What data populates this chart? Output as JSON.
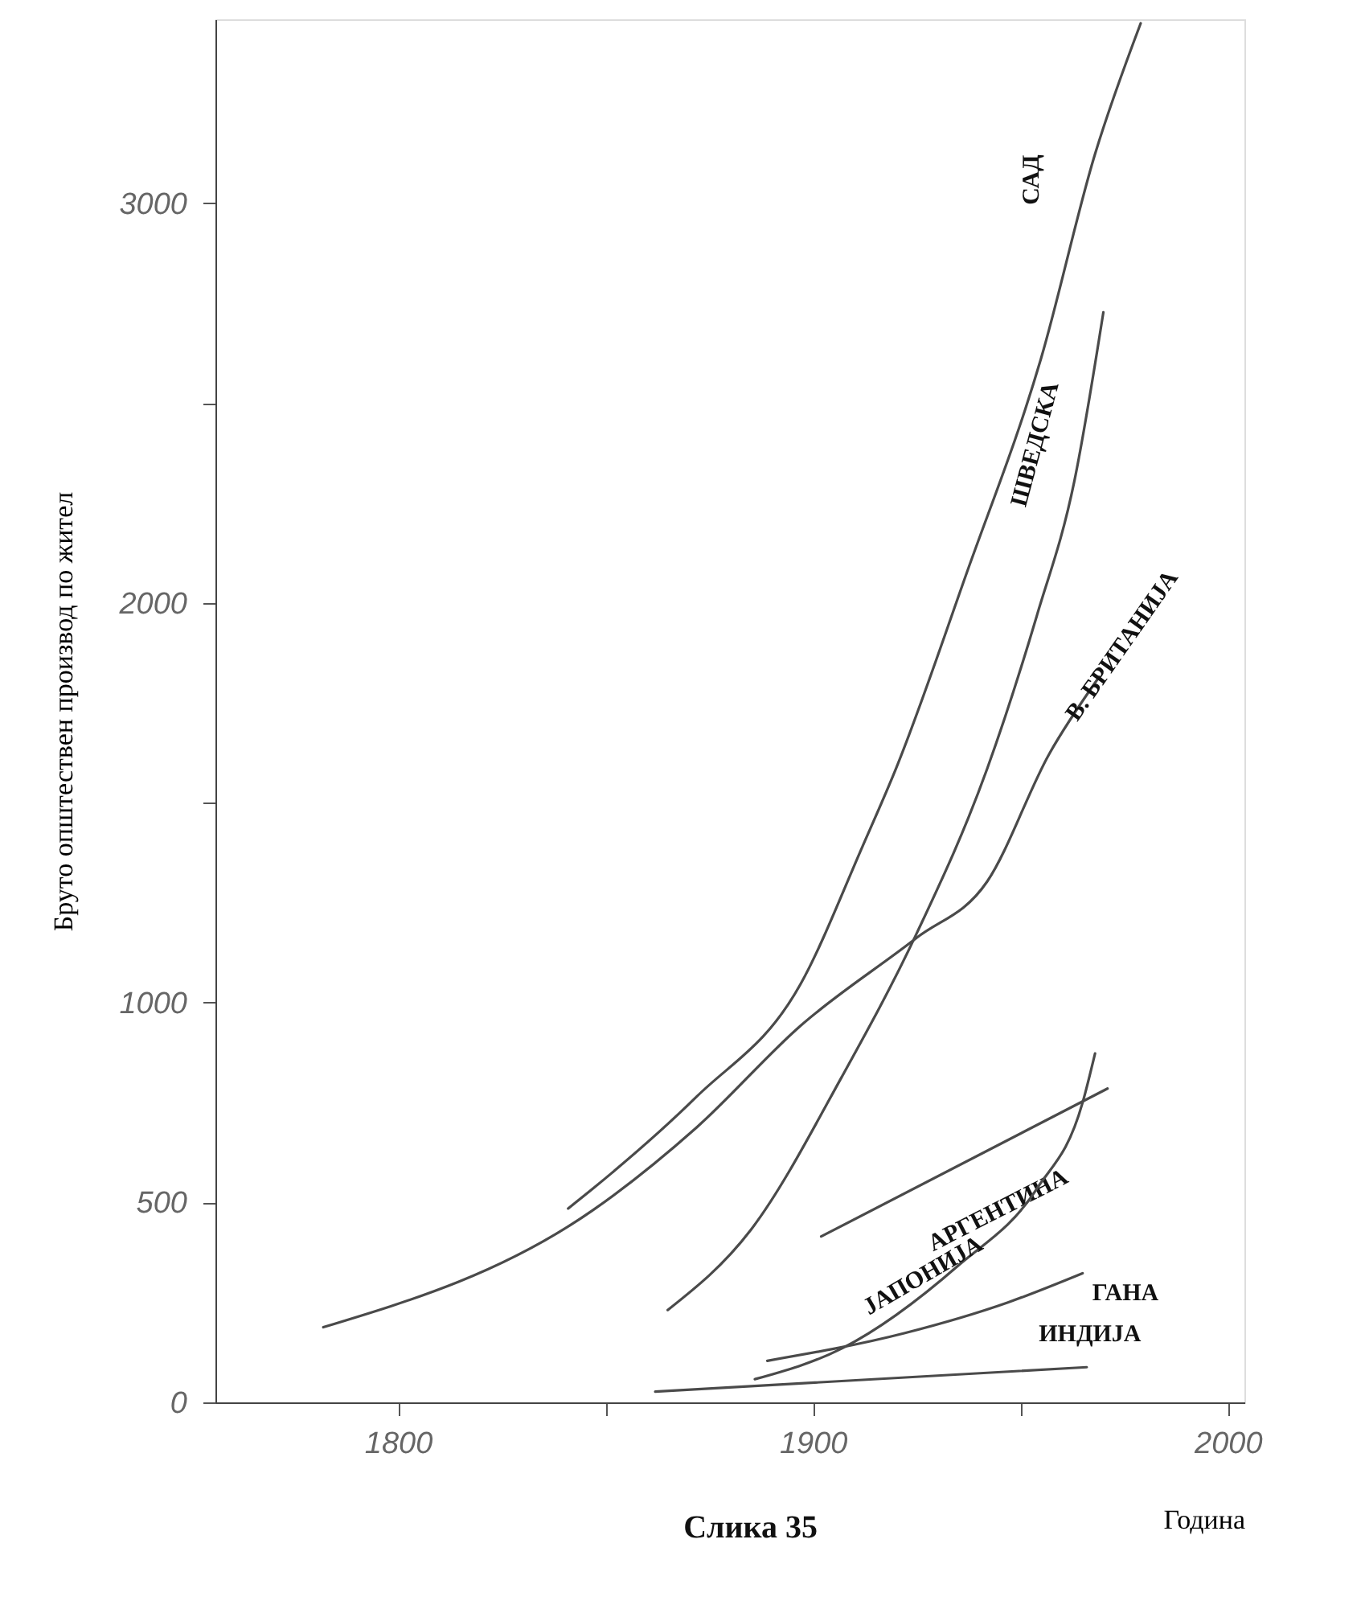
{
  "chart_data": {
    "type": "line",
    "xlabel": "Година",
    "ylabel": "Бруто општествен производ по жител",
    "annotations": [
      "Слика 35"
    ],
    "xlim": [
      1756,
      2004
    ],
    "xticks": [
      1800,
      {
        "value": 1850,
        "label": null
      },
      1900,
      {
        "value": 1950,
        "label": null
      },
      2000
    ],
    "ylim": [
      0,
      3460
    ],
    "yticks": [
      0,
      500,
      1000,
      {
        "value": 1500,
        "label": null
      },
      2000,
      {
        "value": 2500,
        "label": null
      },
      3000
    ],
    "grid": false,
    "series": [
      {
        "name": "САД",
        "color": "#4a4a4a",
        "x": [
          1841,
          1847,
          1872,
          1897,
          1912,
          1920,
          1937,
          1955,
          1968,
          1979
        ],
        "values": [
          485,
          535,
          765,
          1046,
          1392,
          1585,
          2073,
          2612,
          3123,
          3450
        ]
      },
      {
        "name": "ШВЕДСКА",
        "color": "#4a4a4a",
        "x": [
          1865,
          1885,
          1907,
          1925,
          1942,
          1954,
          1963,
          1970
        ],
        "values": [
          231,
          431,
          815,
          1173,
          1585,
          1969,
          2304,
          2727
        ]
      },
      {
        "name": "В. БРИТАНИЈА",
        "color": "#4a4a4a",
        "x": [
          1782,
          1847,
          1872,
          1897,
          1925,
          1942,
          1957,
          1969
        ],
        "values": [
          188,
          481,
          688,
          942,
          1162,
          1303,
          1623,
          1815
        ]
      },
      {
        "name": "АРГЕНТИНА",
        "color": "#4a4a4a",
        "x": [
          1902,
          1971
        ],
        "values": [
          415,
          785
        ]
      },
      {
        "name": "ЈАПОНИЈА",
        "color": "#4a4a4a",
        "x": [
          1886,
          1907,
          1935,
          1954,
          1965,
          1968
        ],
        "values": [
          58,
          135,
          342,
          535,
          750,
          873
        ]
      },
      {
        "name": "ГАНА",
        "color": "#4a4a4a",
        "x": [
          1889,
          1922,
          1947,
          1965
        ],
        "values": [
          104,
          173,
          250,
          323
        ]
      },
      {
        "name": "ИНДИЈА",
        "color": "#4a4a4a",
        "x": [
          1862,
          1966
        ],
        "values": [
          27,
          88
        ]
      }
    ]
  }
}
